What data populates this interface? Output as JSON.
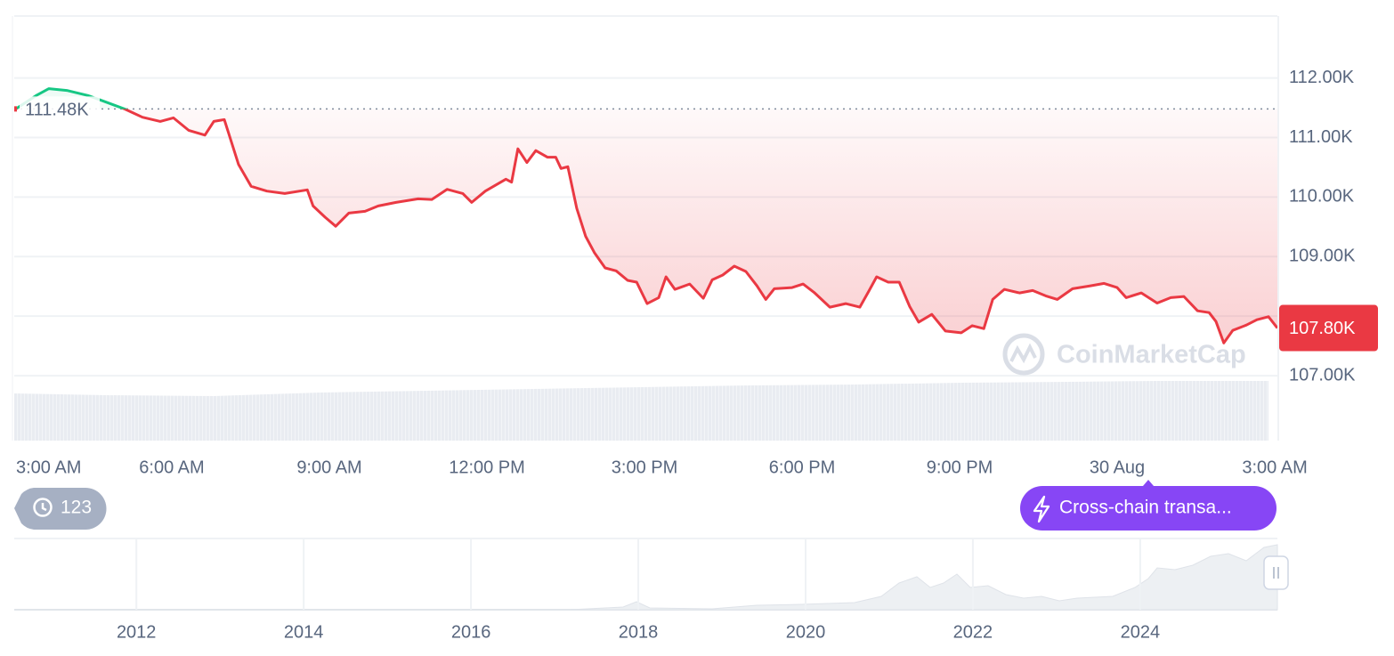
{
  "chart_data": {
    "type": "line",
    "x": [
      3.03,
      3.41,
      3.66,
      4.0,
      4.42,
      4.73,
      5.1,
      5.44,
      5.78,
      6.03,
      6.32,
      6.63,
      6.8,
      7.0,
      7.27,
      7.51,
      7.81,
      8.15,
      8.58,
      8.69,
      8.92,
      9.12,
      9.37,
      9.68,
      9.93,
      10.27,
      10.69,
      10.95,
      11.24,
      11.54,
      11.71,
      11.97,
      12.36,
      12.47,
      12.59,
      12.76,
      12.93,
      13.15,
      13.31,
      13.41,
      13.54,
      13.71,
      13.88,
      14.05,
      14.25,
      14.46,
      14.68,
      14.85,
      15.05,
      15.27,
      15.41,
      15.58,
      15.86,
      16.12,
      16.29,
      16.49,
      16.71,
      16.93,
      17.14,
      17.31,
      17.47,
      17.81,
      18.02,
      18.24,
      18.53,
      18.83,
      19.1,
      19.27,
      19.42,
      19.64,
      19.85,
      20.05,
      20.22,
      20.47,
      20.73,
      21.03,
      21.24,
      21.46,
      21.63,
      21.85,
      22.14,
      22.39,
      22.64,
      22.86,
      23.15,
      23.49,
      23.75,
      24.0,
      24.17,
      24.46,
      24.76,
      25.02,
      25.27,
      25.53,
      25.75,
      25.88,
      26.03,
      26.2,
      26.46,
      26.66,
      26.88,
      27.05
    ],
    "series": [
      {
        "values": [
          111.48,
          111.7,
          111.82,
          111.79,
          111.7,
          111.6,
          111.48,
          111.34,
          111.27,
          111.33,
          111.12,
          111.04,
          111.27,
          111.3,
          110.55,
          110.18,
          110.1,
          110.06,
          110.12,
          109.85,
          109.66,
          109.51,
          109.73,
          109.76,
          109.85,
          109.91,
          109.97,
          109.96,
          110.13,
          110.06,
          109.91,
          110.1,
          110.3,
          110.25,
          110.81,
          110.58,
          110.78,
          110.67,
          110.67,
          110.48,
          110.51,
          109.81,
          109.34,
          109.06,
          108.81,
          108.76,
          108.6,
          108.57,
          108.21,
          108.31,
          108.66,
          108.45,
          108.54,
          108.3,
          108.61,
          108.69,
          108.84,
          108.75,
          108.51,
          108.28,
          108.46,
          108.48,
          108.54,
          108.39,
          108.15,
          108.21,
          108.15,
          108.42,
          108.66,
          108.57,
          108.57,
          108.16,
          107.9,
          108.03,
          107.75,
          107.72,
          107.84,
          107.79,
          108.28,
          108.45,
          108.39,
          108.43,
          108.34,
          108.28,
          108.46,
          108.51,
          108.55,
          108.48,
          108.31,
          108.39,
          108.22,
          108.31,
          108.33,
          108.09,
          108.06,
          107.91,
          107.55,
          107.76,
          107.85,
          107.94,
          107.99,
          107.8
        ],
        "color": "#ea3943",
        "color_above": "#16c784"
      }
    ],
    "xlim": [
      3,
      27.05
    ],
    "xticks": [
      {
        "value": 3,
        "label": "3:00 AM"
      },
      {
        "value": 6,
        "label": "6:00 AM"
      },
      {
        "value": 9,
        "label": "9:00 AM"
      },
      {
        "value": 12,
        "label": "12:00 PM"
      },
      {
        "value": 15,
        "label": "3:00 PM"
      },
      {
        "value": 18,
        "label": "6:00 PM"
      },
      {
        "value": 21,
        "label": "9:00 PM"
      },
      {
        "value": 24,
        "label": "30 Aug"
      },
      {
        "value": 27,
        "label": "3:00 AM"
      }
    ],
    "ylim": [
      105.91,
      113.04
    ],
    "yticks": [
      {
        "value": 107,
        "label": "107.00K"
      },
      {
        "value": 108,
        "label": "108.00K"
      },
      {
        "value": 109,
        "label": "109.00K"
      },
      {
        "value": 110,
        "label": "110.00K"
      },
      {
        "value": 111,
        "label": "111.00K"
      },
      {
        "value": 112,
        "label": "112.00K"
      }
    ],
    "grid": true,
    "reference_line": {
      "value": 111.48,
      "label": "111.48K"
    },
    "current_price": {
      "value": 107.8,
      "label": "107.80K"
    },
    "watermark": "CoinMarketCap"
  },
  "navigator": {
    "xlim": [
      2010.54,
      2025.64
    ],
    "xticks": [
      2012,
      2014,
      2016,
      2018,
      2020,
      2022,
      2024
    ]
  },
  "ui": {
    "history_count": "123",
    "event_button": "Cross-chain transa..."
  }
}
